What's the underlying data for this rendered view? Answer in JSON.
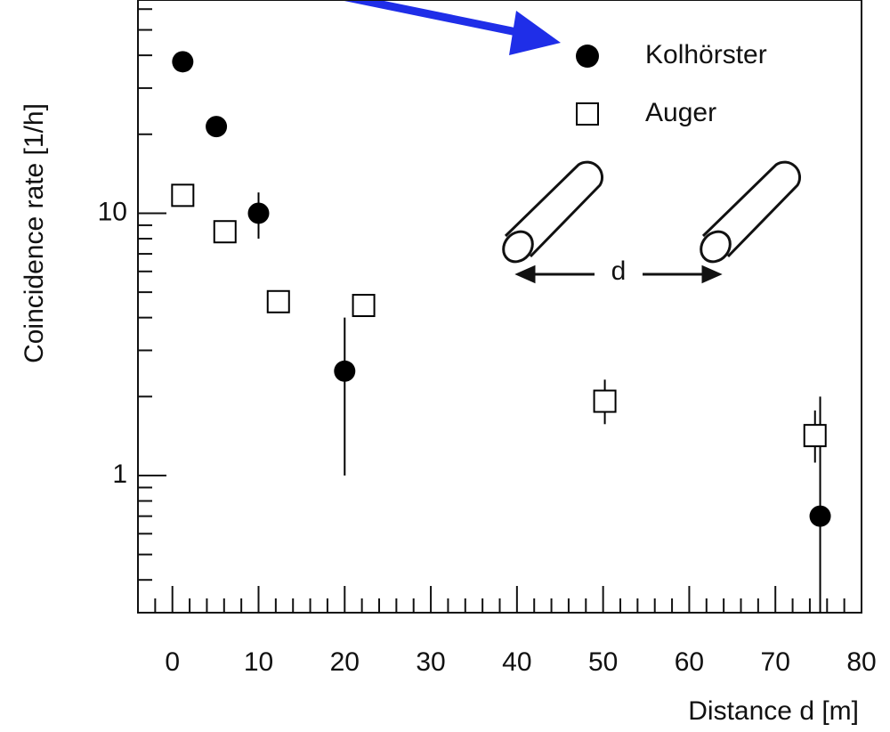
{
  "chart_data": {
    "type": "scatter",
    "x_label": "Distance d [m]",
    "y_label": "Coincidence rate [1/h]",
    "inset_label": "d",
    "log_y": true,
    "xlim": [
      -4,
      80
    ],
    "xticks": [
      0,
      10,
      20,
      30,
      40,
      50,
      60,
      70,
      80
    ],
    "ylim": [
      0.3,
      65
    ],
    "yticks": [
      1,
      10
    ],
    "legend": "upper right",
    "series": [
      {
        "name": "Kolhörster",
        "color": "#000000",
        "marker": "circle",
        "x": [
          1.2,
          5.1,
          10,
          20,
          75.2
        ],
        "values": [
          37.8,
          21.4,
          10,
          2.5,
          0.7
        ],
        "errors": [
          null,
          null,
          [
            2,
            2
          ],
          [
            1.5,
            1.5
          ],
          [
            0.4,
            1.3
          ]
        ]
      },
      {
        "name": "Auger",
        "color": "#000000",
        "marker": "square",
        "x": [
          1.2,
          6.1,
          12.3,
          22.2,
          50.2,
          74.6
        ],
        "values": [
          11.7,
          8.5,
          4.6,
          4.45,
          1.92,
          1.42
        ],
        "errors": [
          null,
          null,
          null,
          null,
          [
            0.35,
            0.4
          ],
          [
            0.3,
            0.35
          ]
        ]
      }
    ]
  }
}
